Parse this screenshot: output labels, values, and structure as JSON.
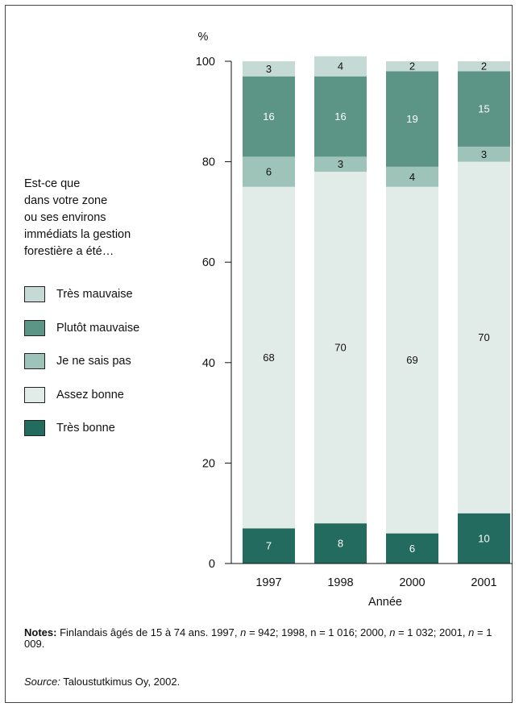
{
  "chart_data": {
    "type": "bar",
    "stacked": true,
    "ylabel": "%",
    "xlabel": "Année",
    "ylim": [
      0,
      100
    ],
    "yticks": [
      0,
      20,
      40,
      60,
      80,
      100
    ],
    "categories": [
      "1997",
      "1998",
      "2000",
      "2001"
    ],
    "series": [
      {
        "name": "Très bonne",
        "color": "#236b5f",
        "values": [
          7,
          8,
          6,
          10
        ]
      },
      {
        "name": "Assez bonne",
        "color": "#e1ebe8",
        "values": [
          68,
          70,
          69,
          70
        ]
      },
      {
        "name": "Je ne sais pas",
        "color": "#9ec3b9",
        "values": [
          6,
          3,
          4,
          3
        ]
      },
      {
        "name": "Plutôt mauvaise",
        "color": "#5c9585",
        "values": [
          16,
          16,
          19,
          15
        ]
      },
      {
        "name": "Très mauvaise",
        "color": "#c6dad5",
        "values": [
          3,
          4,
          2,
          2
        ]
      }
    ],
    "legend_order": [
      4,
      3,
      2,
      1,
      0
    ],
    "grid": false
  },
  "legend": {
    "question_lines": [
      "Est-ce que",
      "dans votre zone",
      "ou ses environs",
      "immédiats la gestion",
      "forestière a été…"
    ]
  },
  "notes": {
    "label": "Notes:",
    "text_parts": [
      " Finlandais âgés de 15 à 74 ans. 1997, ",
      "n",
      " = 942; 1998, n = 1 016; 2000, ",
      "n",
      " = 1 032; 2001, ",
      "n",
      " = 1 009."
    ]
  },
  "source": {
    "label": "Source:",
    "text": " Taloustutkimus Oy, 2002."
  }
}
